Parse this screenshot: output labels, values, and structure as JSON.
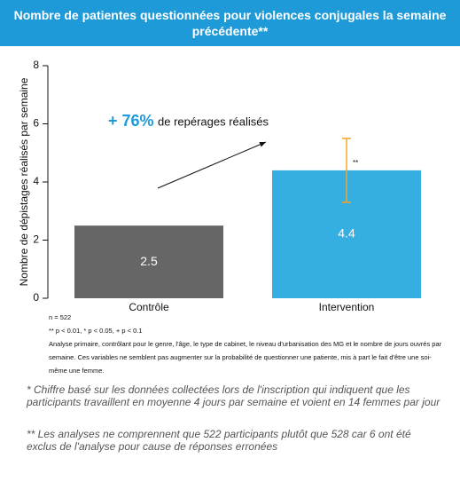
{
  "chart_data": {
    "type": "bar",
    "title": "Nombre de patientes questionnées pour violences conjugales la semaine précédente**",
    "y_label": "Nombre de dépistages réalisés par semaine",
    "categories": [
      "Contrôle",
      "Intervention"
    ],
    "values": [
      2.5,
      4.4
    ],
    "colors": [
      "#666666",
      "#35aee2"
    ],
    "error_bars": [
      null,
      {
        "low": 3.3,
        "high": 5.5,
        "label": "**",
        "color": "#f5a623"
      }
    ],
    "ylim": [
      0,
      8
    ],
    "yticks": [
      0,
      2,
      4,
      6,
      8
    ],
    "annotation": {
      "value": "+ 76%",
      "text": "de repérages réalisés"
    },
    "notes": [
      "n = 522",
      "** p < 0.01, * p < 0.05, + p < 0.1",
      "Analyse primaire, contrôlant pour le genre, l'âge, le type de cabinet, le niveau d'urbanisation des MG et le nombre de jours ouvrés par semaine. Ces variables ne semblent pas augmenter sur la probabilité de questionner une patiente, mis à part le fait d'être une soi-même une femme."
    ],
    "footnotes": [
      "* Chiffre basé sur les données collectées lors de l'inscription qui indiquent que les participants travaillent en moyenne 4 jours par semaine et voient en 14 femmes par jour",
      "** Les analyses ne comprennent que 522 participants plutôt que 528 car 6 ont été exclus de l'analyse pour cause de réponses erronées"
    ]
  }
}
